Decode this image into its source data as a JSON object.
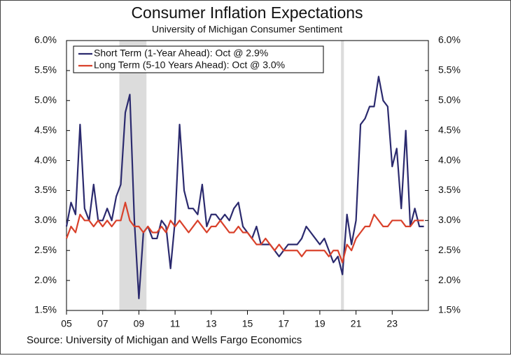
{
  "chart_data": {
    "type": "line",
    "title": "Consumer Inflation Expectations",
    "subtitle": "University of Michigan Consumer Sentiment",
    "source": "Source: University of Michigan and Wells Fargo Economics",
    "x": [
      2005,
      2005.25,
      2005.5,
      2005.75,
      2006,
      2006.25,
      2006.5,
      2006.75,
      2007,
      2007.25,
      2007.5,
      2007.75,
      2008,
      2008.25,
      2008.5,
      2008.75,
      2009,
      2009.25,
      2009.5,
      2009.75,
      2010,
      2010.25,
      2010.5,
      2010.75,
      2011,
      2011.25,
      2011.5,
      2011.75,
      2012,
      2012.25,
      2012.5,
      2012.75,
      2013,
      2013.25,
      2013.5,
      2013.75,
      2014,
      2014.25,
      2014.5,
      2014.75,
      2015,
      2015.25,
      2015.5,
      2015.75,
      2016,
      2016.25,
      2016.5,
      2016.75,
      2017,
      2017.25,
      2017.5,
      2017.75,
      2018,
      2018.25,
      2018.5,
      2018.75,
      2019,
      2019.25,
      2019.5,
      2019.75,
      2020,
      2020.25,
      2020.5,
      2020.75,
      2021,
      2021.25,
      2021.5,
      2021.75,
      2022,
      2022.25,
      2022.5,
      2022.75,
      2023,
      2023.25,
      2023.5,
      2023.75,
      2024,
      2024.25,
      2024.5,
      2024.75
    ],
    "series": [
      {
        "name": "Short Term (1-Year Ahead): Oct @ 2.9%",
        "color": "#2b2a6e",
        "values": [
          2.9,
          3.3,
          3.1,
          4.6,
          3.2,
          3.0,
          3.6,
          3.0,
          3.0,
          3.2,
          3.0,
          3.4,
          3.6,
          4.8,
          5.1,
          3.0,
          1.7,
          2.8,
          2.9,
          2.7,
          2.7,
          3.0,
          2.9,
          2.2,
          3.0,
          4.6,
          3.5,
          3.2,
          3.2,
          3.1,
          3.6,
          2.9,
          3.1,
          3.1,
          3.0,
          3.1,
          3.0,
          3.2,
          3.3,
          2.9,
          2.8,
          2.7,
          2.9,
          2.6,
          2.6,
          2.6,
          2.5,
          2.4,
          2.5,
          2.6,
          2.6,
          2.6,
          2.7,
          2.9,
          2.8,
          2.7,
          2.6,
          2.7,
          2.5,
          2.3,
          2.4,
          2.1,
          3.1,
          2.6,
          3.0,
          4.6,
          4.7,
          4.9,
          4.9,
          5.4,
          5.0,
          4.9,
          3.9,
          4.2,
          3.2,
          4.5,
          2.9,
          3.2,
          2.9,
          2.9
        ]
      },
      {
        "name": "Long Term (5-10 Years Ahead): Oct @ 3.0%",
        "color": "#d9412b",
        "values": [
          2.7,
          2.9,
          2.8,
          3.1,
          3.0,
          3.0,
          2.9,
          3.0,
          2.9,
          3.0,
          2.9,
          3.0,
          3.0,
          3.3,
          3.0,
          2.9,
          2.9,
          2.8,
          2.9,
          2.8,
          2.8,
          2.9,
          2.8,
          3.0,
          2.9,
          3.0,
          2.9,
          2.8,
          2.9,
          3.0,
          2.9,
          2.8,
          2.9,
          2.9,
          3.0,
          2.9,
          2.8,
          2.8,
          2.9,
          2.8,
          2.8,
          2.7,
          2.6,
          2.6,
          2.7,
          2.6,
          2.5,
          2.6,
          2.5,
          2.5,
          2.5,
          2.5,
          2.4,
          2.5,
          2.5,
          2.5,
          2.5,
          2.5,
          2.4,
          2.5,
          2.5,
          2.3,
          2.6,
          2.5,
          2.7,
          2.8,
          2.9,
          2.9,
          3.1,
          3.0,
          2.9,
          2.9,
          3.0,
          3.0,
          3.0,
          2.9,
          2.9,
          3.0,
          3.0,
          3.0
        ]
      }
    ],
    "recessions": [
      [
        2007.92,
        2009.42
      ],
      [
        2020.17,
        2020.33
      ]
    ],
    "recession_color": "#dcdcdc",
    "xlim": [
      2005,
      2025
    ],
    "xticks": [
      {
        "value": 2005,
        "label": "05"
      },
      {
        "value": 2007,
        "label": "07"
      },
      {
        "value": 2009,
        "label": "09"
      },
      {
        "value": 2011,
        "label": "11"
      },
      {
        "value": 2013,
        "label": "13"
      },
      {
        "value": 2015,
        "label": "15"
      },
      {
        "value": 2017,
        "label": "17"
      },
      {
        "value": 2019,
        "label": "19"
      },
      {
        "value": 2021,
        "label": "21"
      },
      {
        "value": 2023,
        "label": "23"
      }
    ],
    "ylim": [
      1.5,
      6.0
    ],
    "yticks": [
      {
        "value": 1.5,
        "label": "1.5%"
      },
      {
        "value": 2.0,
        "label": "2.0%"
      },
      {
        "value": 2.5,
        "label": "2.5%"
      },
      {
        "value": 3.0,
        "label": "3.0%"
      },
      {
        "value": 3.5,
        "label": "3.5%"
      },
      {
        "value": 4.0,
        "label": "4.0%"
      },
      {
        "value": 4.5,
        "label": "4.5%"
      },
      {
        "value": 5.0,
        "label": "5.0%"
      },
      {
        "value": 5.5,
        "label": "5.5%"
      },
      {
        "value": 6.0,
        "label": "6.0%"
      }
    ],
    "y2lim": [
      1.5,
      6.0
    ],
    "y2ticks": [
      {
        "value": 1.5,
        "label": "1.5%"
      },
      {
        "value": 2.0,
        "label": "2.0%"
      },
      {
        "value": 2.5,
        "label": "2.5%"
      },
      {
        "value": 3.0,
        "label": "3.0%"
      },
      {
        "value": 3.5,
        "label": "3.5%"
      },
      {
        "value": 4.0,
        "label": "4.0%"
      },
      {
        "value": 4.5,
        "label": "4.5%"
      },
      {
        "value": 5.0,
        "label": "5.0%"
      },
      {
        "value": 5.5,
        "label": "5.5%"
      },
      {
        "value": 6.0,
        "label": "6.0%"
      }
    ],
    "legend": "upper left"
  }
}
